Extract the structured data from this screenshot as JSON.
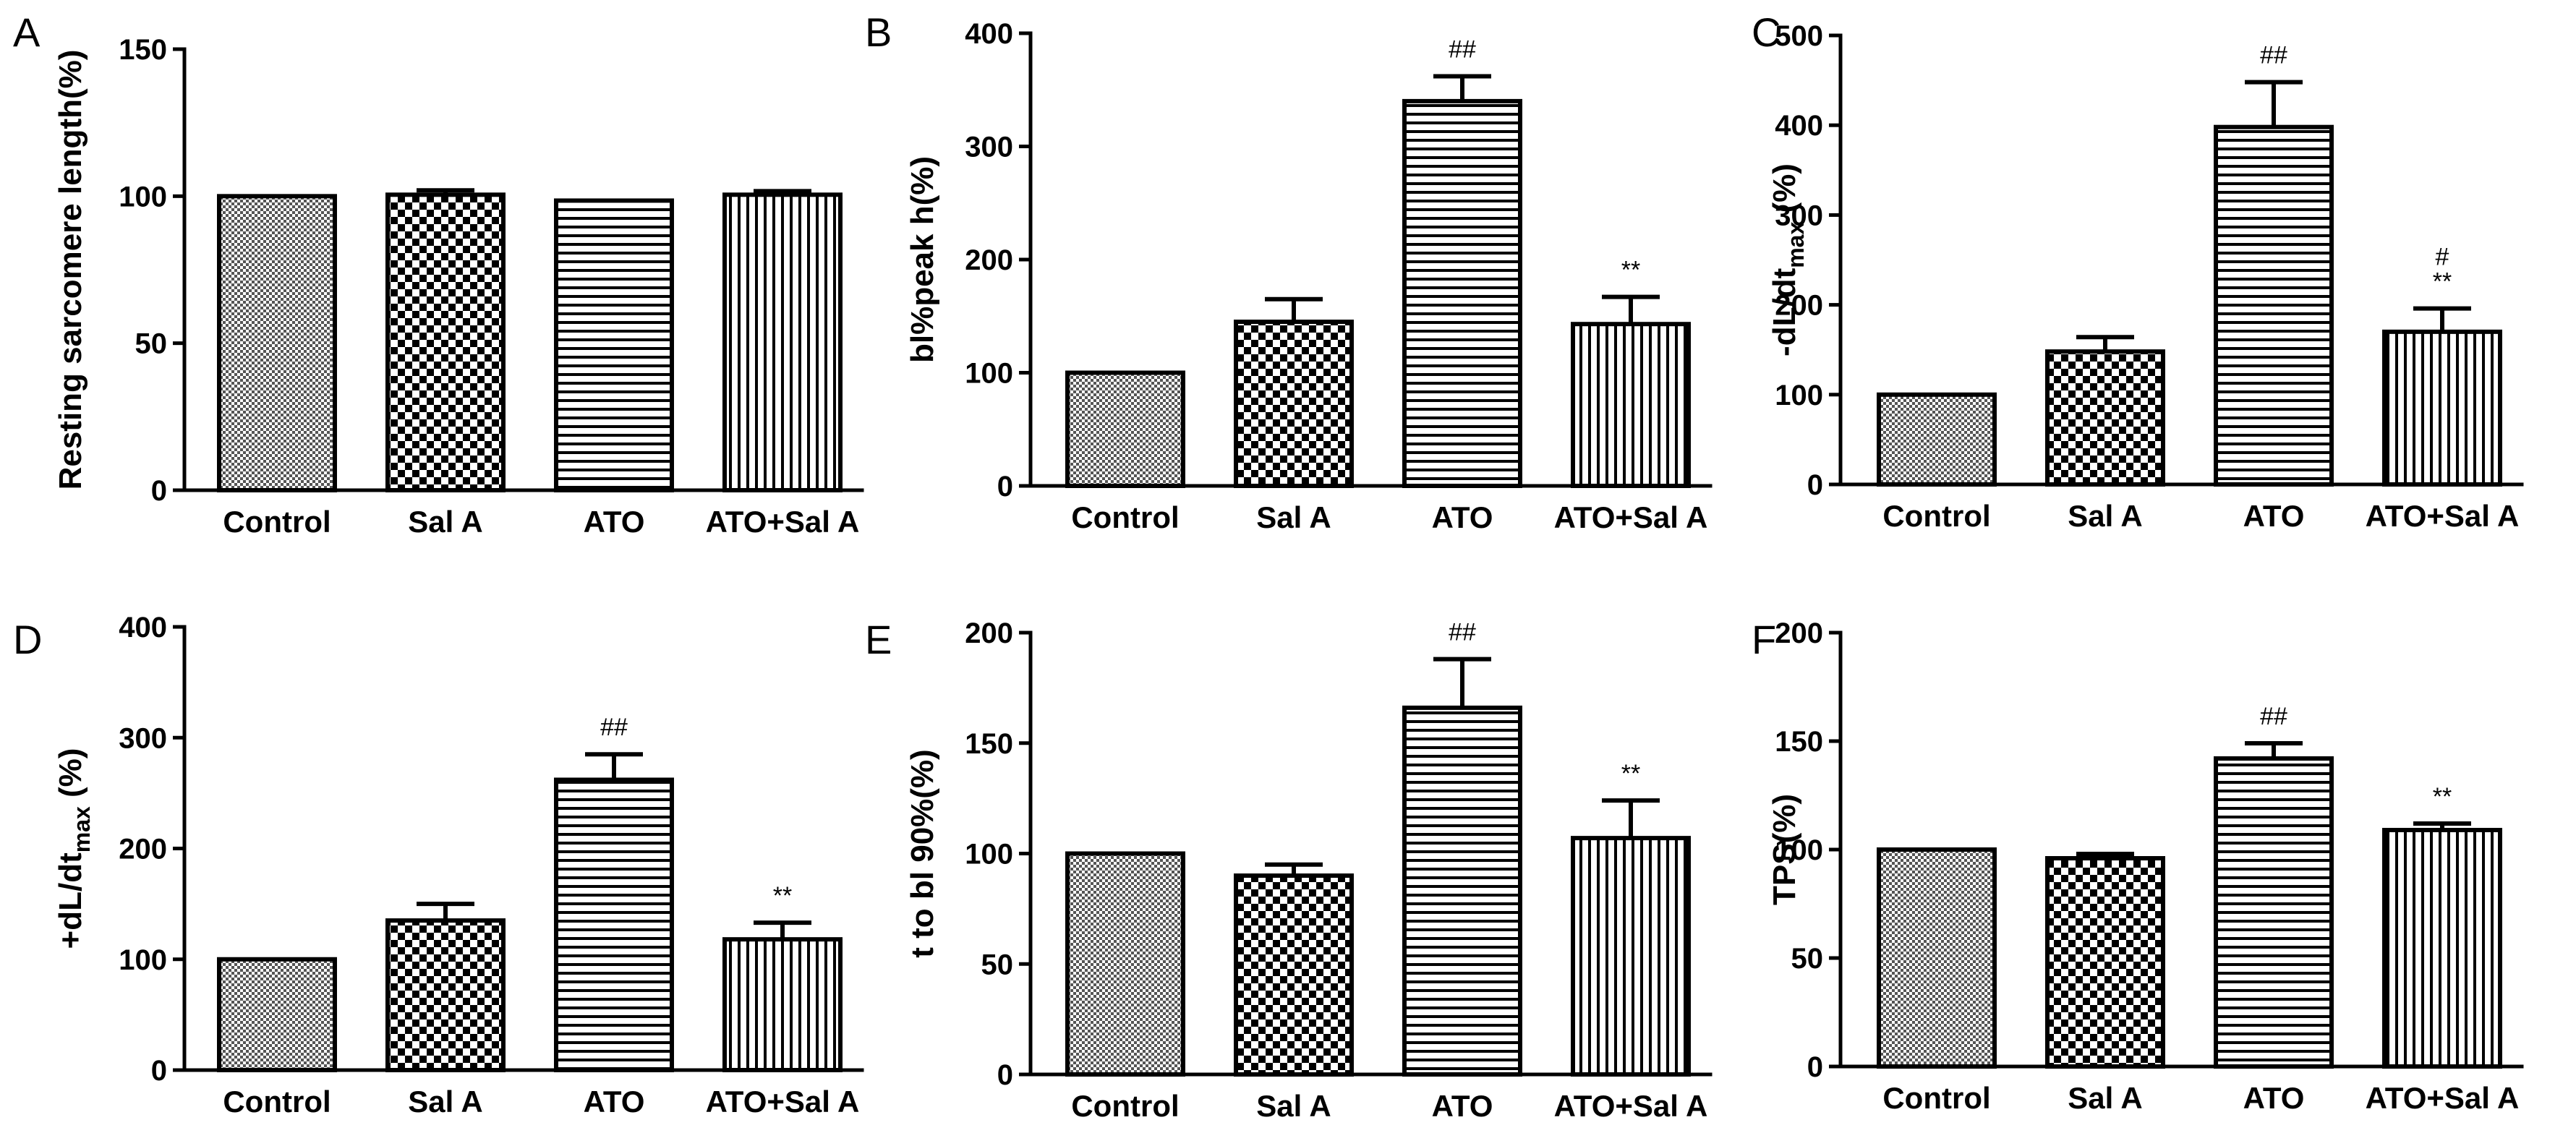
{
  "chart_data": [
    {
      "type": "bar",
      "panel": "A",
      "ylabel": "Resting sarcomere length(%)",
      "ylabel_sub": "",
      "ylabel_suffix": "",
      "ylim": [
        0,
        150
      ],
      "yticks": [
        0,
        50,
        100,
        150
      ],
      "categories": [
        "Control",
        "Sal A",
        "ATO",
        "ATO+Sal A"
      ],
      "values": [
        100,
        100.5,
        98.5,
        100.5
      ],
      "errors": [
        0,
        1.5,
        0,
        1.2
      ],
      "patterns": [
        "dots",
        "checker",
        "hlines",
        "vlines"
      ],
      "annotations": [
        "",
        "",
        "",
        ""
      ]
    },
    {
      "type": "bar",
      "panel": "B",
      "ylabel": "bl%peak h(%)",
      "ylabel_sub": "",
      "ylabel_suffix": "",
      "ylim": [
        0,
        400
      ],
      "yticks": [
        0,
        100,
        200,
        300,
        400
      ],
      "categories": [
        "Control",
        "Sal A",
        "ATO",
        "ATO+Sal A"
      ],
      "values": [
        100,
        145,
        340,
        143
      ],
      "errors": [
        0,
        20,
        22,
        24
      ],
      "patterns": [
        "dots",
        "checker",
        "hlines",
        "vlines"
      ],
      "annotations": [
        "",
        "",
        "##",
        "**"
      ]
    },
    {
      "type": "bar",
      "panel": "C",
      "ylabel": "-dL/dt",
      "ylabel_sub": "max",
      "ylabel_suffix": " (%)",
      "ylim": [
        0,
        500
      ],
      "yticks": [
        0,
        100,
        200,
        300,
        400,
        500
      ],
      "categories": [
        "Control",
        "Sal A",
        "ATO",
        "ATO+Sal A"
      ],
      "values": [
        100,
        148,
        398,
        170
      ],
      "errors": [
        0,
        16,
        50,
        26
      ],
      "patterns": [
        "dots",
        "checker",
        "hlines",
        "vlines"
      ],
      "annotations": [
        "",
        "",
        "##",
        "#\n**"
      ]
    },
    {
      "type": "bar",
      "panel": "D",
      "ylabel": "+dL/dt",
      "ylabel_sub": "max",
      "ylabel_suffix": " (%)",
      "ylim": [
        0,
        400
      ],
      "yticks": [
        0,
        100,
        200,
        300,
        400
      ],
      "categories": [
        "Control",
        "Sal A",
        "ATO",
        "ATO+Sal A"
      ],
      "values": [
        100,
        135,
        262,
        118
      ],
      "errors": [
        0,
        15,
        23,
        15
      ],
      "patterns": [
        "dots",
        "checker",
        "hlines",
        "vlines"
      ],
      "annotations": [
        "",
        "",
        "##",
        "**"
      ]
    },
    {
      "type": "bar",
      "panel": "E",
      "ylabel": "t to bl 90%(%)",
      "ylabel_sub": "",
      "ylabel_suffix": "",
      "ylim": [
        0,
        200
      ],
      "yticks": [
        0,
        50,
        100,
        150,
        200
      ],
      "categories": [
        "Control",
        "Sal A",
        "ATO",
        "ATO+Sal A"
      ],
      "values": [
        100,
        90,
        166,
        107
      ],
      "errors": [
        0,
        5,
        22,
        17
      ],
      "patterns": [
        "dots",
        "checker",
        "hlines",
        "vlines"
      ],
      "annotations": [
        "",
        "",
        "##",
        "**"
      ]
    },
    {
      "type": "bar",
      "panel": "F",
      "ylabel": "TPS(%)",
      "ylabel_sub": "",
      "ylabel_suffix": "",
      "ylim": [
        0,
        200
      ],
      "yticks": [
        0,
        50,
        100,
        150,
        200
      ],
      "categories": [
        "Control",
        "Sal A",
        "ATO",
        "ATO+Sal A"
      ],
      "values": [
        100,
        96,
        142,
        109
      ],
      "errors": [
        0,
        2,
        7,
        3
      ],
      "patterns": [
        "dots",
        "checker",
        "hlines",
        "vlines"
      ],
      "annotations": [
        "",
        "",
        "##",
        "**"
      ]
    }
  ]
}
